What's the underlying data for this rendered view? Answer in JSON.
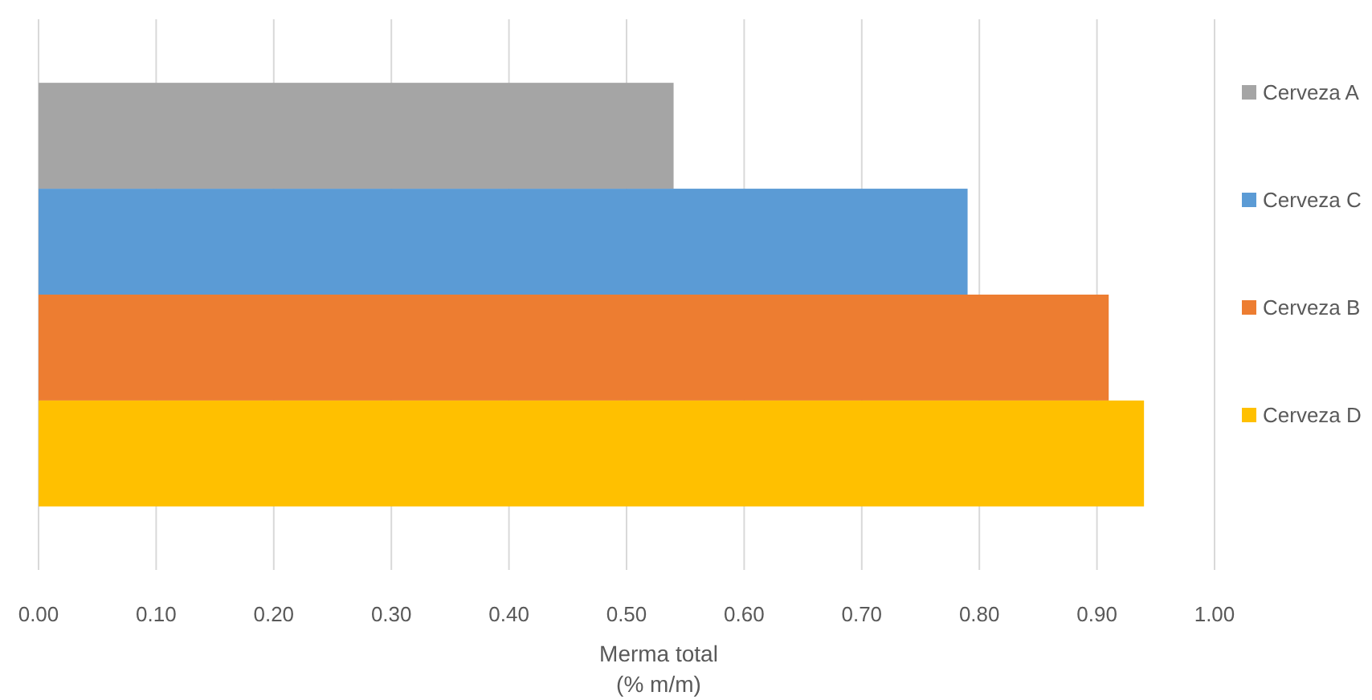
{
  "chart_data": {
    "type": "bar",
    "orientation": "horizontal",
    "categories": [
      null
    ],
    "xlabel": "Merma total\n(% m/m)",
    "series": [
      {
        "name": "Cerveza A",
        "color": "#a5a5a5",
        "values": [
          0.54
        ]
      },
      {
        "name": "Cerveza C",
        "color": "#5b9bd5",
        "values": [
          0.79
        ]
      },
      {
        "name": "Cerveza B",
        "color": "#ed7d31",
        "values": [
          0.91
        ]
      },
      {
        "name": "Cerveza D",
        "color": "#ffc000",
        "values": [
          0.94
        ]
      }
    ],
    "xlim": [
      0,
      1
    ],
    "xticks": [
      {
        "value": 0,
        "label": "0.00"
      },
      {
        "value": 0.1,
        "label": "0.10"
      },
      {
        "value": 0.2,
        "label": "0.20"
      },
      {
        "value": 0.3,
        "label": "0.30"
      },
      {
        "value": 0.4,
        "label": "0.40"
      },
      {
        "value": 0.5,
        "label": "0.50"
      },
      {
        "value": 0.6,
        "label": "0.60"
      },
      {
        "value": 0.7,
        "label": "0.70"
      },
      {
        "value": 0.8,
        "label": "0.80"
      },
      {
        "value": 0.9,
        "label": "0.90"
      },
      {
        "value": 1,
        "label": "1.00"
      }
    ],
    "grid": "x",
    "legend": "right"
  }
}
